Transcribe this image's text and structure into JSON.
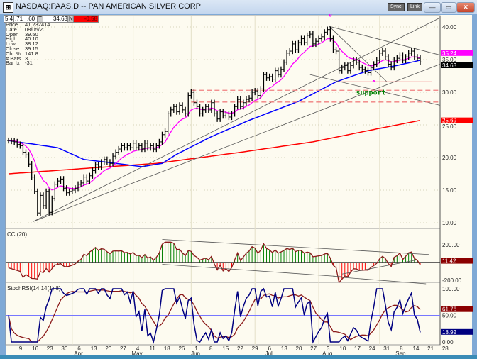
{
  "window": {
    "title": "NASDAQ:PAAS,D -- PAN AMERICAN SILVER CORP",
    "icon": "chart-app-icon",
    "buttons": {
      "sync": "Sync",
      "link": "Link",
      "minimize": "—",
      "maximize": "▭",
      "close": "✕"
    }
  },
  "quote_bar": {
    "f1": "5.43",
    "f2": ".71",
    "f3": ".60",
    "t_label": "T",
    "last": "34.63",
    "n_label": "N",
    "change": "-0.58"
  },
  "info_panel": [
    {
      "label": "Price",
      "value": "41.232414"
    },
    {
      "label": "Date",
      "value": "08/05/20"
    },
    {
      "label": "Open",
      "value": "39.50"
    },
    {
      "label": "High",
      "value": "40.10"
    },
    {
      "label": "Low",
      "value": "38.12"
    },
    {
      "label": "Close",
      "value": "39.15"
    },
    {
      "label": "Chr %",
      "value": "141.8"
    },
    {
      "label": "# Bars",
      "value": "3"
    },
    {
      "label": "Bar Ix",
      "value": "-31"
    }
  ],
  "colors": {
    "background": "#fdfbf0",
    "bars": "#000000",
    "ema_fast": "#ff00ff",
    "ma_mid": "#0000ff",
    "ma_slow": "#ff0000",
    "cci_up": "#008000",
    "cci_down": "#ff0000",
    "cci_line": "#8b1a1a",
    "stoch_rsi": "#000080",
    "stoch_signal": "#8b1a1a",
    "trendline": "#555555",
    "support": "#008000",
    "annotation": "#ff00ff"
  },
  "chart_data": [
    {
      "type": "bar",
      "panel": "price",
      "ylim": [
        9,
        42
      ],
      "y_ticks": [
        "10.00",
        "15.00",
        "20.00",
        "25.00",
        "30.00",
        "35.00",
        "40.00"
      ],
      "x_ticks": [
        {
          "label": "9",
          "month": ""
        },
        {
          "label": "16",
          "month": ""
        },
        {
          "label": "23",
          "month": ""
        },
        {
          "label": "30",
          "month": ""
        },
        {
          "label": "6",
          "month": "Apr"
        },
        {
          "label": "13",
          "month": ""
        },
        {
          "label": "20",
          "month": ""
        },
        {
          "label": "27",
          "month": ""
        },
        {
          "label": "4",
          "month": "May"
        },
        {
          "label": "11",
          "month": ""
        },
        {
          "label": "18",
          "month": ""
        },
        {
          "label": "26",
          "month": ""
        },
        {
          "label": "1",
          "month": "Jun"
        },
        {
          "label": "8",
          "month": ""
        },
        {
          "label": "15",
          "month": ""
        },
        {
          "label": "22",
          "month": ""
        },
        {
          "label": "29",
          "month": ""
        },
        {
          "label": "6",
          "month": "Jul"
        },
        {
          "label": "13",
          "month": ""
        },
        {
          "label": "20",
          "month": ""
        },
        {
          "label": "27",
          "month": ""
        },
        {
          "label": "3",
          "month": "Aug"
        },
        {
          "label": "10",
          "month": ""
        },
        {
          "label": "17",
          "month": ""
        },
        {
          "label": "24",
          "month": ""
        },
        {
          "label": "31",
          "month": ""
        },
        {
          "label": "8",
          "month": "Sep"
        },
        {
          "label": "14",
          "month": ""
        },
        {
          "label": "21",
          "month": ""
        },
        {
          "label": "28",
          "month": ""
        }
      ],
      "closes": [
        22.6,
        22.5,
        22.4,
        22.0,
        21.8,
        20.8,
        20.4,
        19.0,
        17.0,
        14.8,
        11.5,
        14.2,
        12.6,
        14.8,
        11.6,
        13.7,
        15.9,
        16.4,
        16.7,
        15.3,
        14.6,
        14.8,
        15.0,
        15.3,
        15.9,
        16.1,
        17.0,
        16.4,
        17.2,
        18.0,
        18.9,
        18.6,
        19.3,
        19.7,
        19.3,
        19.1,
        20.2,
        20.8,
        21.3,
        21.8,
        21.5,
        21.8,
        21.5,
        22.2,
        21.5,
        21.8,
        21.3,
        22.2,
        21.5,
        21.8,
        21.3,
        21.8,
        22.4,
        23.5,
        24.0,
        26.7,
        27.3,
        27.8,
        27.0,
        28.0,
        27.3,
        26.7,
        29.5,
        30.0,
        28.4,
        27.8,
        26.7,
        27.3,
        27.8,
        27.3,
        28.4,
        26.7,
        25.9,
        27.0,
        26.4,
        26.7,
        26.2,
        26.7,
        27.8,
        28.9,
        27.8,
        28.4,
        28.9,
        29.1,
        30.0,
        30.2,
        29.5,
        30.5,
        32.7,
        32.2,
        32.4,
        32.0,
        33.3,
        32.7,
        33.5,
        34.6,
        36.0,
        36.3,
        37.4,
        36.5,
        37.6,
        38.2,
        37.6,
        38.7,
        38.9,
        37.4,
        37.8,
        38.2,
        38.5,
        39.2,
        39.6,
        38.2,
        36.5,
        36.3,
        33.3,
        33.8,
        34.1,
        33.3,
        34.1,
        34.9,
        34.6,
        33.8,
        33.5,
        33.3,
        33.0,
        33.8,
        34.3,
        34.9,
        36.0,
        36.3,
        35.4,
        34.3,
        33.8,
        34.9,
        35.2,
        35.7,
        34.9,
        35.4,
        36.0,
        36.3,
        35.4,
        35.2,
        34.63
      ],
      "ma_mid_knots": [
        [
          0,
          22.6
        ],
        [
          17,
          21.5
        ],
        [
          26,
          19.7
        ],
        [
          46,
          18.6
        ],
        [
          53,
          19.1
        ],
        [
          58,
          20.5
        ],
        [
          70,
          23.2
        ],
        [
          83,
          25.7
        ],
        [
          100,
          28.6
        ],
        [
          113,
          31.6
        ],
        [
          124,
          33.3
        ],
        [
          134,
          34.1
        ],
        [
          142,
          34.9
        ]
      ],
      "ma_slow_knots": [
        [
          0,
          17.5
        ],
        [
          51,
          19.1
        ],
        [
          80,
          20.8
        ],
        [
          105,
          22.4
        ],
        [
          125,
          24.2
        ],
        [
          142,
          25.69
        ]
      ],
      "trendlines": [
        {
          "from": [
            8.6,
            10.2
          ],
          "to": [
            148.8,
            41.4
          ]
        },
        {
          "from": [
            8.6,
            10.2
          ],
          "to": [
            148.8,
            34.3
          ]
        },
        {
          "from": [
            110.6,
            40.1
          ],
          "to": [
            148.8,
            35.7
          ]
        },
        {
          "from": [
            110.6,
            40.1
          ],
          "to": [
            130.5,
            31.6
          ]
        },
        {
          "from": [
            104,
            32.7
          ],
          "to": [
            148.8,
            28.0
          ]
        }
      ],
      "support_lines": [
        {
          "from": [
            114,
            31.6
          ],
          "to": [
            146,
            31.6
          ],
          "style": "solid"
        },
        {
          "from": [
            63,
            30.3
          ],
          "to": [
            148.8,
            30.3
          ],
          "style": "dashed"
        },
        {
          "from": [
            63,
            28.5
          ],
          "to": [
            148.8,
            28.5
          ],
          "style": "dashed"
        }
      ],
      "annotations": [
        {
          "text": "v",
          "at": [
            111,
            41.6
          ],
          "color": "#ff00ff"
        },
        {
          "text": "^",
          "at": [
            126,
            31.0
          ],
          "color": "#ff00ff"
        },
        {
          "text": "support",
          "at": [
            125,
            29.6
          ],
          "color": "#008000"
        }
      ],
      "last_labels": [
        {
          "text": "35.24",
          "bg": "#ff00ff",
          "fg": "#ffffff",
          "value": 35.24
        },
        {
          "text": "34.63",
          "bg": "#000000",
          "fg": "#ffffff",
          "value": 34.63
        },
        {
          "text": "25.69",
          "bg": "#ff0000",
          "fg": "#ffffff",
          "value": 25.69
        }
      ]
    },
    {
      "type": "bar",
      "panel": "CCI",
      "title": "CCI(20)",
      "ylim": [
        -250,
        250
      ],
      "y_ticks": [
        "200.00",
        "-200.00"
      ],
      "last_label": {
        "text": "11.42",
        "bg": "#8b0000"
      },
      "trendlines": [
        {
          "from": [
            53,
            260
          ],
          "to": [
            145,
            90
          ]
        },
        {
          "from": [
            53,
            -20
          ],
          "to": [
            115,
            -160
          ]
        },
        {
          "from": [
            112,
            -160
          ],
          "to": [
            144,
            -240
          ]
        },
        {
          "from": [
            115,
            -130
          ],
          "to": [
            141,
            30
          ]
        }
      ]
    },
    {
      "type": "line",
      "panel": "StochRSI",
      "title": "StochRSI(14,14(1),8)",
      "ylim": [
        0,
        100
      ],
      "y_ticks": [
        "100.00",
        "50.00",
        "0.00"
      ],
      "reference_line": 50,
      "last_labels": [
        {
          "text": "61.76",
          "bg": "#8b0000",
          "value": 61.76
        },
        {
          "text": "18.92",
          "bg": "#000080",
          "value": 18.92
        }
      ]
    }
  ]
}
